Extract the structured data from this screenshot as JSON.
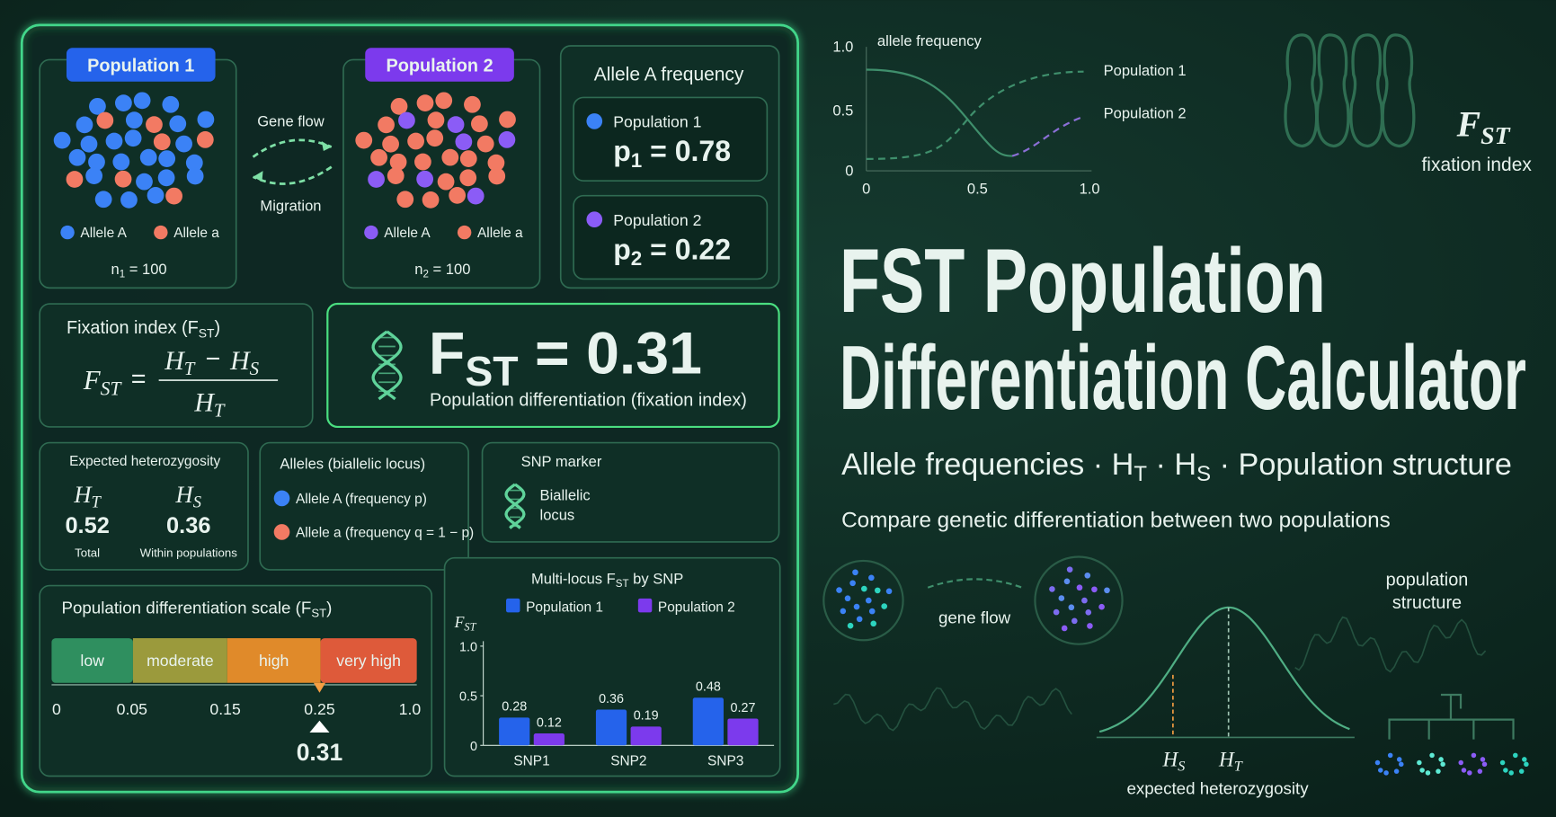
{
  "populations": [
    {
      "label": "Population 1",
      "allele_A": "Allele A",
      "allele_a": "Allele a",
      "size": [
        "n",
        {
          "sub": "1"
        },
        " = 100"
      ]
    },
    {
      "label": "Population 2",
      "allele_A": "Allele A",
      "allele_a": "Allele a",
      "size": [
        "n",
        {
          "sub": "2"
        },
        " = 100"
      ]
    }
  ],
  "gene_flow": "Gene flow",
  "migration": "Migration",
  "allele_frequency": {
    "title": "Allele A frequency",
    "items": [
      {
        "name": "Population 1",
        "value": [
          "p",
          {
            "sub": "1"
          },
          " = 0.78"
        ]
      },
      {
        "name": "Population 2",
        "value": [
          "p",
          {
            "sub": "2"
          },
          " = 0.22"
        ]
      }
    ]
  },
  "fixation_index": {
    "title": [
      "Fixation index (F",
      {
        "sub": "ST"
      },
      ")"
    ],
    "formula": {
      "lhs": [
        "F",
        {
          "sub": "ST"
        }
      ],
      "equals": "=",
      "numerator_a": [
        "H",
        {
          "sub": "T"
        }
      ],
      "minus": "−",
      "numerator_b": [
        "H",
        {
          "sub": "S"
        }
      ],
      "denominator": [
        "H",
        {
          "sub": "T"
        }
      ]
    }
  },
  "result": {
    "value": [
      "F",
      {
        "sub": "ST"
      },
      " = 0.31"
    ],
    "caption": "Population differentiation (fixation index)"
  },
  "heterozygosity": {
    "title": "Expected heterozygosity",
    "items": [
      {
        "symbol": [
          "H",
          {
            "sub": "T"
          }
        ],
        "value": "0.52",
        "label": "Total"
      },
      {
        "symbol": [
          "H",
          {
            "sub": "S"
          }
        ],
        "value": "0.36",
        "label": "Within populations"
      }
    ]
  },
  "alleles": {
    "title": "Alleles (biallelic locus)",
    "items": [
      "Allele A (frequency p)",
      "Allele a (frequency q = 1 − p)"
    ]
  },
  "snp": {
    "title": "SNP marker",
    "lines": [
      "Biallelic",
      "locus"
    ]
  },
  "scale": {
    "title": [
      "Population differentiation scale (F",
      {
        "sub": "ST"
      },
      ")"
    ],
    "bands": [
      "low",
      "moderate",
      "high",
      "very high"
    ],
    "ticks": [
      "0",
      "0.05",
      "0.15",
      "0.25",
      "1.0"
    ],
    "marker": "0.31"
  },
  "chart_data": {
    "type": "bar",
    "title": [
      "Multi-locus F",
      {
        "sub": "ST"
      },
      " by SNP"
    ],
    "y_label": [
      "F",
      {
        "sub": "ST"
      }
    ],
    "categories": [
      "SNP1",
      "SNP2",
      "SNP3"
    ],
    "series": [
      {
        "name": "Population 1",
        "color": "#2563eb",
        "values": [
          0.28,
          0.36,
          0.48
        ]
      },
      {
        "name": "Population 2",
        "color": "#7c3aed",
        "values": [
          0.12,
          0.19,
          0.27
        ]
      }
    ],
    "ylim": [
      0,
      1
    ],
    "yticks": [
      0,
      0.5,
      {
        "value": 1,
        "label": "1.0"
      }
    ]
  },
  "hero": {
    "sketch": {
      "label": "allele frequency",
      "yticks": [
        "1.0",
        "0.5",
        "0"
      ],
      "xticks": [
        "0",
        "0.5",
        "1.0"
      ],
      "series": [
        "Population 1",
        "Population 2"
      ]
    },
    "badge": {
      "symbol": [
        "F",
        {
          "sub": "ST"
        }
      ],
      "label": "fixation index"
    },
    "title": [
      "FST Population",
      "Differentiation Calculator"
    ],
    "subtitle": [
      "Allele frequencies · H",
      {
        "sub": "T"
      },
      " · H",
      {
        "sub": "S"
      },
      " · Population structure"
    ],
    "tagline": "Compare genetic differentiation between two populations",
    "gene_flow": "gene flow",
    "structure": [
      "population",
      "structure"
    ],
    "bell": {
      "hs": [
        "H",
        {
          "sub": "S"
        }
      ],
      "ht": [
        "H",
        {
          "sub": "T"
        }
      ],
      "label": "expected heterozygosity"
    }
  }
}
